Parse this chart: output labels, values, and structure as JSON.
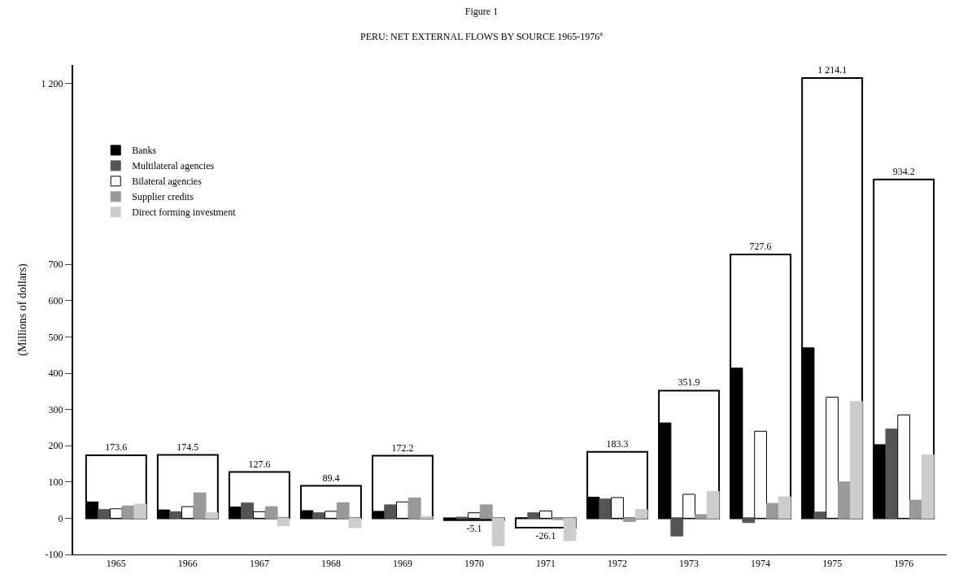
{
  "chart_data": {
    "type": "bar",
    "title": "Figure 1",
    "subtitle": "PERU: NET EXTERNAL FLOWS BY SOURCE 1965-1976$^{a}$",
    "ylabel": "(Millions of dollars)",
    "categories": [
      "1965",
      "1966",
      "1967",
      "1968",
      "1969",
      "1970",
      "1971",
      "1972",
      "1973",
      "1974",
      "1975",
      "1976"
    ],
    "series": [
      {
        "color": "#000000",
        "values": [
          173.6,
          174.5,
          127.6,
          89.4,
          172.2,
          -5.1,
          -26.1,
          183.3,
          351.9,
          727.6,
          1214.1,
          934.2
        ],
        "value_labels": [
          "173.6",
          "174.5",
          "127.6",
          "89.4",
          "172.2",
          "-5.1",
          "-26.1",
          "183.3",
          "351.9",
          "727.6",
          "1 214.1",
          "934.2"
        ]
      },
      {
        "name": "Banks",
        "color": "#000000",
        "values": [
          45,
          23,
          31,
          21,
          19,
          -3,
          1,
          58,
          263,
          414,
          470,
          203
        ]
      },
      {
        "name": "Multilateral agencies",
        "color": "#555555",
        "values": [
          24,
          18,
          42,
          15,
          37,
          3,
          15,
          53,
          -49,
          -12,
          17,
          246
        ]
      },
      {
        "name": "Bilateral agencies",
        "color": "#ffffff",
        "values": [
          26,
          32,
          18,
          19,
          45,
          15,
          20,
          57,
          66,
          240,
          334,
          285
        ]
      },
      {
        "name": "Supplier credits",
        "color": "#999999",
        "values": [
          34,
          70,
          32,
          43,
          56,
          37,
          -4,
          -9,
          10,
          41,
          100,
          50
        ]
      },
      {
        "name": "Direct forming investment",
        "color": "#cccccc",
        "values": [
          39,
          15,
          -21,
          -26,
          5,
          -76,
          -62,
          24,
          74,
          59,
          322,
          175
        ]
      }
    ],
    "ylim": [
      -100,
      1250
    ],
    "yticks": [
      {
        "value": -100,
        "label": "-100"
      },
      0,
      100,
      200,
      300,
      400,
      500,
      600,
      700,
      {
        "value": 1200,
        "label": "1 200"
      }
    ],
    "grid": false,
    "legend": "top left"
  }
}
